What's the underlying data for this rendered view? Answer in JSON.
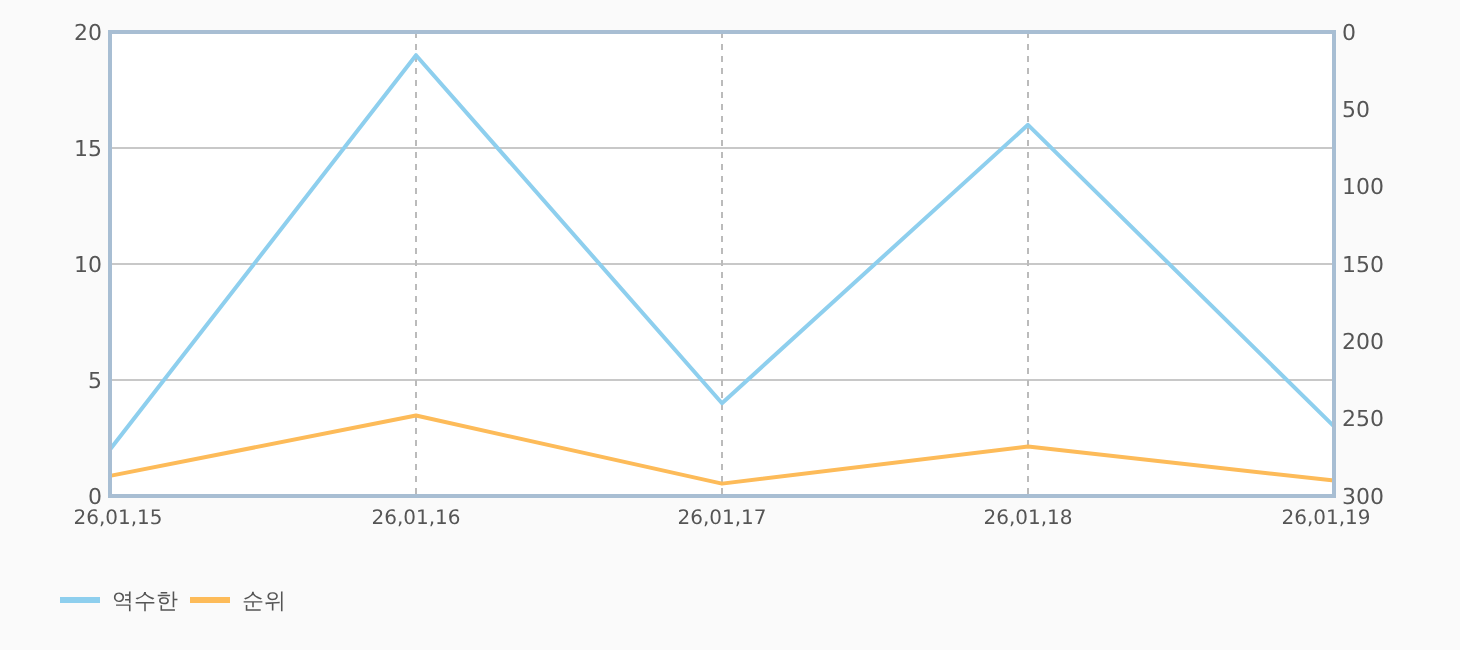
{
  "chart_data": {
    "type": "line",
    "categories": [
      "26,01,15",
      "26,01,16",
      "26,01,17",
      "26,01,18",
      "26,01,19"
    ],
    "series": [
      {
        "name": "역수한",
        "color": "#8ecfee",
        "values": [
          2,
          19,
          4,
          16,
          3
        ]
      },
      {
        "name": "순위",
        "color": "#fdbb59",
        "values": [
          287,
          248,
          292,
          268,
          290
        ],
        "axis": "y2"
      }
    ],
    "ylim": [
      0,
      20
    ],
    "yticks": [
      0,
      5,
      10,
      15,
      20
    ],
    "y2lim": [
      300,
      0
    ],
    "y2ticks": [
      0,
      50,
      100,
      150,
      200,
      250,
      300
    ],
    "grid": true,
    "legend": "bottom left",
    "marker": "none",
    "line_style": "solid"
  }
}
